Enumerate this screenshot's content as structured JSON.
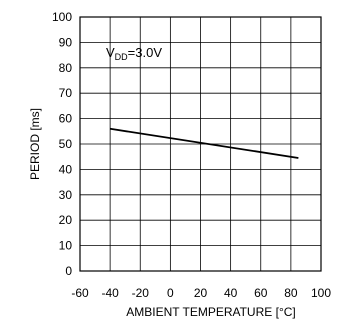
{
  "chart_data": {
    "type": "line",
    "title": "",
    "xlabel": "AMBIENT TEMPERATURE [°C]",
    "ylabel": "PERIOD [ms]",
    "xlim": [
      -60,
      100
    ],
    "ylim": [
      0,
      100
    ],
    "xticks": [
      -60,
      -40,
      -20,
      0,
      20,
      40,
      60,
      80,
      100
    ],
    "yticks": [
      0,
      10,
      20,
      30,
      40,
      50,
      60,
      70,
      80,
      90,
      100
    ],
    "grid": true,
    "annotation": {
      "main": "V",
      "subscript": "DD",
      "suffix": "=3.0V"
    },
    "series": [
      {
        "x": [
          -40,
          85
        ],
        "y": [
          56,
          44.5
        ]
      }
    ]
  }
}
